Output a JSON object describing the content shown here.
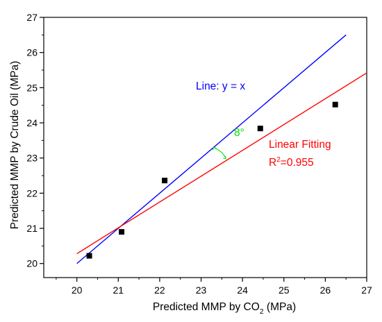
{
  "chart_data": {
    "type": "scatter",
    "xlabel": {
      "main": "Predicted MMP by CO",
      "sub": "2",
      "tail": " (MPa)"
    },
    "ylabel": "Predicted MMP by Crude Oil (MPa)",
    "xlim": [
      19.2,
      27
    ],
    "ylim": [
      19.6,
      27
    ],
    "xticks": [
      "20",
      "21",
      "22",
      "23",
      "24",
      "25",
      "26",
      "27"
    ],
    "yticks": [
      "20",
      "21",
      "22",
      "23",
      "24",
      "25",
      "26",
      "27"
    ],
    "grid": false,
    "points": [
      {
        "x": 20.3,
        "y": 20.22
      },
      {
        "x": 21.08,
        "y": 20.9
      },
      {
        "x": 22.12,
        "y": 22.36
      },
      {
        "x": 24.43,
        "y": 23.84
      },
      {
        "x": 26.24,
        "y": 24.52
      }
    ],
    "lines": [
      {
        "label": "Line: y = x",
        "color": "#0000ff",
        "from": [
          20,
          20
        ],
        "to": [
          26.5,
          26.5
        ]
      },
      {
        "label": "Linear Fitting",
        "color": "#ff0000",
        "from": [
          20,
          20.28
        ],
        "to": [
          27,
          25.42
        ]
      }
    ],
    "annotations": {
      "identity_label": "Line: y = x",
      "fit_label": "Linear Fitting",
      "r2_prefix": "R",
      "r2_sup": "2",
      "r2_value": "=0.955",
      "angle_label": "8°"
    },
    "colors": {
      "identity": "#0000ff",
      "fit": "#ff0000",
      "angle": "#00e000",
      "points": "#000000"
    }
  }
}
